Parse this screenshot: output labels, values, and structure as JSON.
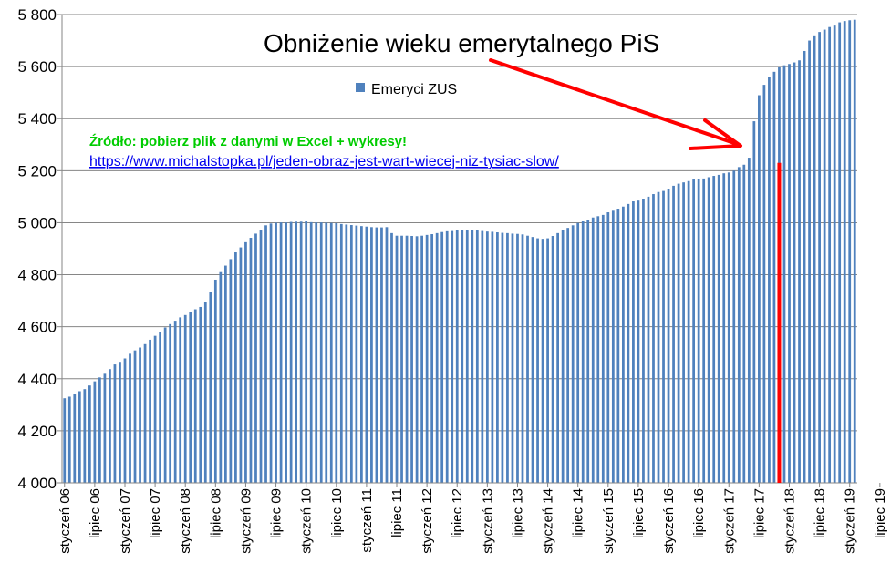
{
  "chart_data": {
    "type": "bar",
    "legend": {
      "label": "Emeryci ZUS",
      "placement": "top-center"
    },
    "annotation": "Obniżenie wieku emerytalnego PiS",
    "source_text": "Źródło: pobierz plik z danymi w Excel + wykresy!",
    "source_link": "https://www.michalstopka.pl/jeden-obraz-jest-wart-wiecej-niz-tysiac-slow/",
    "ylim": [
      4000,
      5800
    ],
    "yticks": [
      "4 000",
      "4 200",
      "4 400",
      "4 600",
      "4 800",
      "5 000",
      "5 200",
      "5 400",
      "5 600",
      "5 800"
    ],
    "grid": true,
    "x_start": "styczeń 06",
    "x_labels": [
      "styczeń 06",
      "lipiec 06",
      "styczeń 07",
      "lipiec 07",
      "styczeń 08",
      "lipiec 08",
      "styczeń 09",
      "lipiec 09",
      "styczeń 10",
      "lipiec 10",
      "styczeń 11",
      "lipiec 11",
      "styczeń 12",
      "lipiec 12",
      "styczeń 13",
      "lipiec 13",
      "styczeń 14",
      "lipiec 14",
      "styczeń 15",
      "lipiec 15",
      "styczeń 16",
      "lipiec 16",
      "styczeń 17",
      "lipiec 17",
      "styczeń 18",
      "lipiec 18",
      "styczeń 19",
      "lipiec 19"
    ],
    "values": [
      4325,
      4331,
      4342,
      4352,
      4360,
      4374,
      4390,
      4405,
      4419,
      4437,
      4455,
      4465,
      4478,
      4496,
      4509,
      4520,
      4533,
      4550,
      4565,
      4580,
      4597,
      4610,
      4623,
      4636,
      4645,
      4658,
      4667,
      4676,
      4695,
      4735,
      4781,
      4810,
      4835,
      4860,
      4886,
      4905,
      4925,
      4942,
      4958,
      4973,
      4990,
      4997,
      5000,
      5001,
      5001,
      5003,
      5004,
      5004,
      5005,
      5002,
      5001,
      5001,
      5000,
      4999,
      4998,
      4995,
      4993,
      4991,
      4989,
      4987,
      4985,
      4983,
      4982,
      4982,
      4983,
      4960,
      4950,
      4950,
      4950,
      4949,
      4948,
      4950,
      4953,
      4956,
      4960,
      4964,
      4967,
      4968,
      4970,
      4970,
      4970,
      4971,
      4970,
      4968,
      4966,
      4965,
      4963,
      4961,
      4960,
      4958,
      4957,
      4955,
      4950,
      4945,
      4940,
      4938,
      4940,
      4949,
      4960,
      4970,
      4980,
      4990,
      4999,
      5005,
      5010,
      5020,
      5025,
      5030,
      5040,
      5046,
      5054,
      5062,
      5072,
      5082,
      5085,
      5090,
      5100,
      5110,
      5118,
      5122,
      5131,
      5142,
      5150,
      5155,
      5160,
      5166,
      5168,
      5170,
      5175,
      5180,
      5184,
      5190,
      5193,
      5200,
      5214,
      5223,
      5250,
      5390,
      5490,
      5530,
      5560,
      5580,
      5597,
      5605,
      5610,
      5616,
      5624,
      5660,
      5700,
      5720,
      5733,
      5742,
      5752,
      5761,
      5770,
      5775,
      5778,
      5780
    ],
    "bar_color": "#4f81bd",
    "arrow_color": "#ff0000",
    "marker_at": "listopad 17"
  }
}
